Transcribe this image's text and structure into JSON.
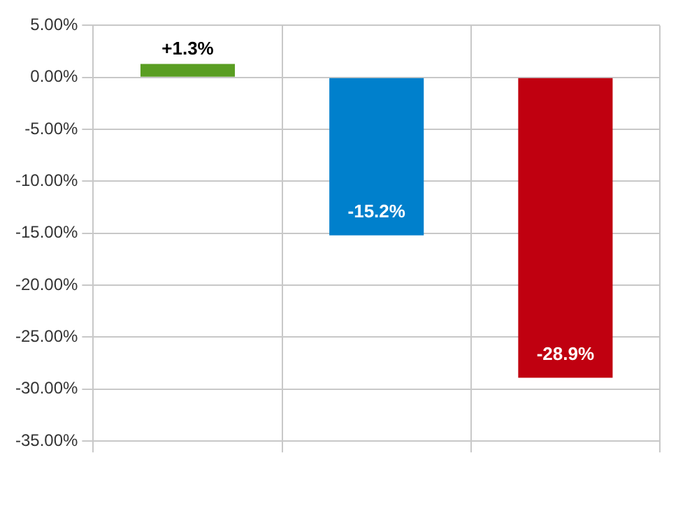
{
  "chart_data": {
    "type": "bar",
    "categories": [
      null,
      null,
      null
    ],
    "values": [
      1.3,
      -15.2,
      -28.9
    ],
    "colors": [
      "#5a9e23",
      "#0080cc",
      "#c00010"
    ],
    "value_labels": [
      "+1.3%",
      "-15.2%",
      "-28.9%"
    ],
    "ylim": [
      -35,
      5
    ],
    "yticks": [
      {
        "value": 5,
        "label": "5.00%"
      },
      {
        "value": 0,
        "label": "0.00%"
      },
      {
        "value": -5,
        "label": "-5.00%"
      },
      {
        "value": -10,
        "label": "-10.00%"
      },
      {
        "value": -15,
        "label": "-15.00%"
      },
      {
        "value": -20,
        "label": "-20.00%"
      },
      {
        "value": -25,
        "label": "-25.00%"
      },
      {
        "value": -30,
        "label": "-30.00%"
      },
      {
        "value": -35,
        "label": "-35.00%"
      }
    ],
    "grid": true
  }
}
